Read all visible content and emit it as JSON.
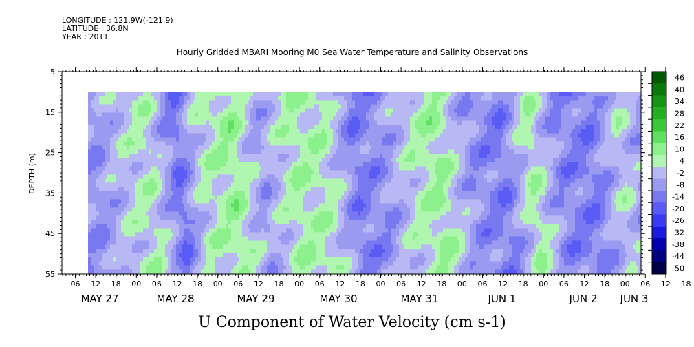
{
  "header": {
    "longitude": "LONGITUDE : 121.9W(-121.9)",
    "latitude": "LATITUDE : 36.8N",
    "year": "YEAR : 2011"
  },
  "chart_data": {
    "type": "heatmap",
    "title": "Hourly Gridded MBARI Mooring M0 Sea Water Temperature and Salinity Observations",
    "ylabel": "DEPTH (m)",
    "xlabel": "U Component of Water Velocity (cm s-1)",
    "ylim": [
      55,
      5
    ],
    "yticks": [
      5,
      15,
      25,
      35,
      45,
      55
    ],
    "data_depth_range": [
      10,
      55
    ],
    "x_hour_ticks": [
      "06",
      "12",
      "18",
      "00",
      "06",
      "12",
      "18",
      "00",
      "06",
      "12",
      "18",
      "00",
      "06",
      "12",
      "18",
      "00",
      "06",
      "12",
      "18",
      "00",
      "06",
      "12",
      "18",
      "00",
      "06",
      "12",
      "18",
      "00",
      "06",
      "12",
      "18",
      "00"
    ],
    "x_date_labels": [
      "MAY 27",
      "MAY 28",
      "MAY 29",
      "MAY 30",
      "MAY 31",
      "JUN  1",
      "JUN  2",
      "JUN  3"
    ],
    "colorbar": {
      "levels": [
        -50,
        -44,
        -38,
        -32,
        -26,
        -20,
        -14,
        -8,
        -2,
        4,
        10,
        16,
        22,
        28,
        34,
        40,
        46
      ],
      "labels": [
        "46",
        "40",
        "34",
        "28",
        "22",
        "16",
        "10",
        "4",
        "-2",
        "-8",
        "-14",
        "-20",
        "-26",
        "-32",
        "-38",
        "-44",
        "-50"
      ],
      "colors": [
        "#00004a",
        "#000080",
        "#0000b0",
        "#1a1ae0",
        "#3a3af5",
        "#5a5af5",
        "#7878f0",
        "#9a9af0",
        "#b8b8f5",
        "#b0f5b0",
        "#8cf08c",
        "#60e060",
        "#38c838",
        "#22b022",
        "#149414",
        "#0a780a",
        "#035a03"
      ]
    },
    "series": [
      {
        "bands": [
          {
            "t": 0.0,
            "v": -6
          },
          {
            "t": 0.06,
            "v": 3
          },
          {
            "t": 0.1,
            "v": 6
          },
          {
            "t": 0.15,
            "v": -12
          },
          {
            "t": 0.19,
            "v": 4
          },
          {
            "t": 0.25,
            "v": 10
          },
          {
            "t": 0.3,
            "v": -4
          },
          {
            "t": 0.36,
            "v": 8
          },
          {
            "t": 0.42,
            "v": 6
          },
          {
            "t": 0.47,
            "v": -10
          },
          {
            "t": 0.52,
            "v": -6
          },
          {
            "t": 0.57,
            "v": 4
          },
          {
            "t": 0.62,
            "v": 10
          },
          {
            "t": 0.68,
            "v": -6
          },
          {
            "t": 0.74,
            "v": -10
          },
          {
            "t": 0.79,
            "v": 8
          },
          {
            "t": 0.84,
            "v": -8
          },
          {
            "t": 0.9,
            "v": -10
          },
          {
            "t": 0.95,
            "v": 4
          },
          {
            "t": 1.0,
            "v": -6
          }
        ]
      }
    ]
  }
}
